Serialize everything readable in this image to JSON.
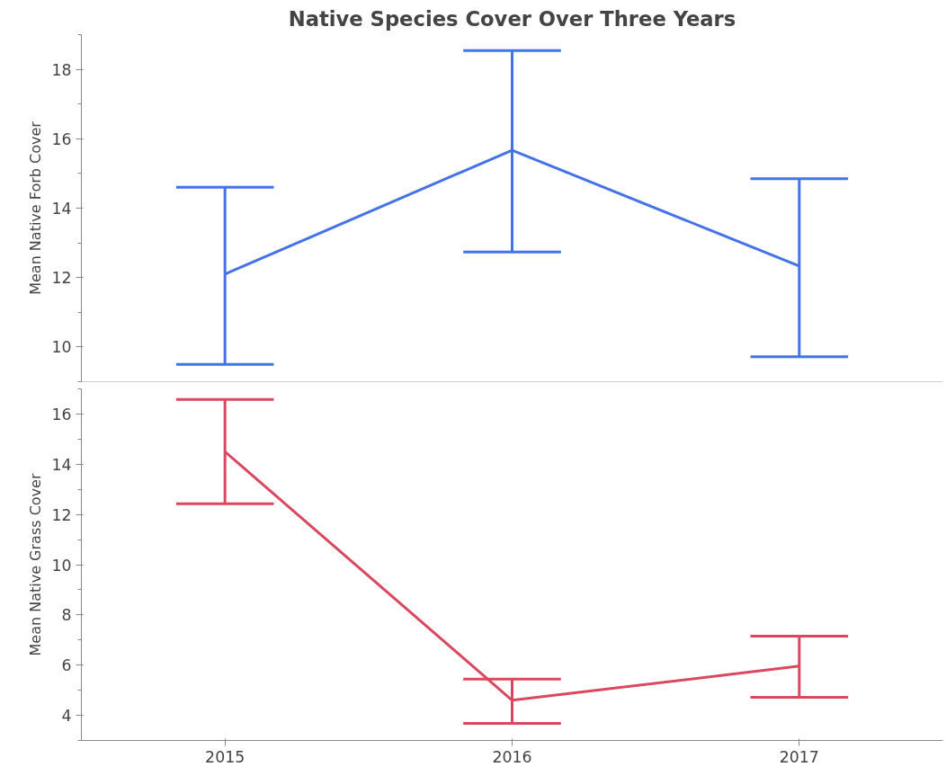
{
  "chart_data": [
    {
      "type": "line",
      "title": "Native Species Cover Over Three Years",
      "ylabel": "Mean Native Forb Cover",
      "categories": [
        "2015",
        "2016",
        "2017"
      ],
      "color": "#4472e8",
      "values": [
        12.1,
        15.67,
        12.33
      ],
      "errors": [
        [
          9.5,
          14.6
        ],
        [
          12.74,
          18.54
        ],
        [
          9.72,
          14.85
        ]
      ],
      "ylim": [
        9,
        19
      ],
      "yticks": [
        10,
        12,
        14,
        16,
        18
      ],
      "grid": false,
      "tick_labels": "y"
    },
    {
      "type": "line",
      "ylabel": "Mean Native Grass Cover",
      "categories": [
        "2015",
        "2016",
        "2017"
      ],
      "color": "#d9485f",
      "values": [
        14.5,
        4.6,
        5.96
      ],
      "errors": [
        [
          12.43,
          16.58
        ],
        [
          3.68,
          5.44
        ],
        [
          4.72,
          7.15
        ]
      ],
      "ylim": [
        3,
        17
      ],
      "yticks": [
        4,
        6,
        8,
        10,
        12,
        14,
        16
      ],
      "grid": false
    }
  ]
}
